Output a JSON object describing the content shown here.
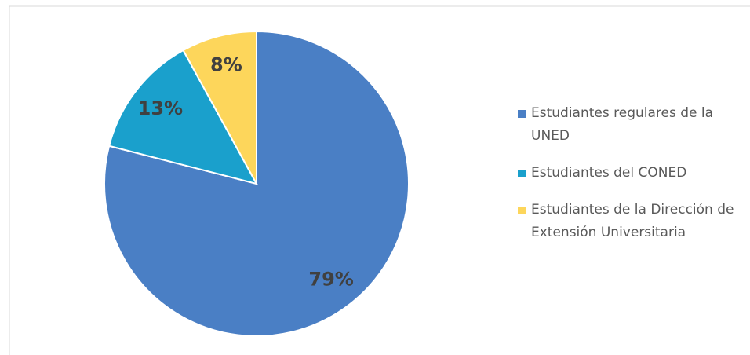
{
  "chart_data": {
    "type": "pie",
    "categories": [
      "Estudiantes regulares de la UNED",
      "Estudiantes del CONED",
      "Estudiantes de la Dirección de Extensión Universitaria"
    ],
    "values": [
      79,
      13,
      8
    ],
    "value_labels": [
      "79%",
      "13%",
      "8%"
    ],
    "colors": [
      "#4a7fc5",
      "#1aa0cc",
      "#fdd65b"
    ],
    "legend": "right"
  }
}
